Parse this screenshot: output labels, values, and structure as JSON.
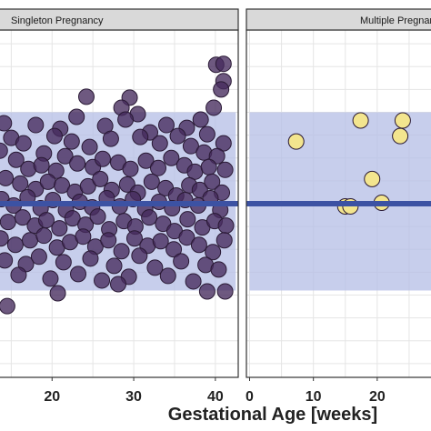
{
  "chart_data": {
    "type": "scatter",
    "xlabel": "Gestational Age [weeks]",
    "ylabel": "",
    "grid": true,
    "colors": {
      "singleton_point": "#452a5c",
      "multiple_point": "#f3e58e",
      "point_stroke": "#2a1a35",
      "reference_line": "#3c52a3",
      "reference_band": "#b4bde6",
      "strip_background": "#d9d9d9",
      "grid": "#e5e5e5"
    },
    "y_domain": [
      -1.9,
      1.9
    ],
    "reference": {
      "line": 0,
      "band": [
        -0.95,
        1.0
      ]
    },
    "panels": [
      {
        "title": "Singleton Pregnancy",
        "xlim": [
          13.4,
          42.8
        ],
        "xticks": [
          20,
          30,
          40
        ],
        "points": [
          [
            40.1,
            1.52
          ],
          [
            41.0,
            1.53
          ],
          [
            41.0,
            1.34
          ],
          [
            40.7,
            1.25
          ],
          [
            39.8,
            1.05
          ],
          [
            38.2,
            0.92
          ],
          [
            36.5,
            0.83
          ],
          [
            29.5,
            1.16
          ],
          [
            28.5,
            1.05
          ],
          [
            30.5,
            0.98
          ],
          [
            24.2,
            1.17
          ],
          [
            23.0,
            0.95
          ],
          [
            21.0,
            0.82
          ],
          [
            26.5,
            0.85
          ],
          [
            32.0,
            0.78
          ],
          [
            34.0,
            0.86
          ],
          [
            39.0,
            0.76
          ],
          [
            41.0,
            0.66
          ],
          [
            14.1,
            0.88
          ],
          [
            15.0,
            0.72
          ],
          [
            16.5,
            0.66
          ],
          [
            18.0,
            0.86
          ],
          [
            19.0,
            0.55
          ],
          [
            20.3,
            0.74
          ],
          [
            22.4,
            0.68
          ],
          [
            24.6,
            0.62
          ],
          [
            27.2,
            0.71
          ],
          [
            29.0,
            0.92
          ],
          [
            30.8,
            0.73
          ],
          [
            33.2,
            0.66
          ],
          [
            35.4,
            0.74
          ],
          [
            37.0,
            0.63
          ],
          [
            38.6,
            0.56
          ],
          [
            40.2,
            0.52
          ],
          [
            13.6,
            0.58
          ],
          [
            15.6,
            0.48
          ],
          [
            17.1,
            0.38
          ],
          [
            18.7,
            0.42
          ],
          [
            20.5,
            0.36
          ],
          [
            21.6,
            0.52
          ],
          [
            23.1,
            0.44
          ],
          [
            25.0,
            0.4
          ],
          [
            26.2,
            0.49
          ],
          [
            28.1,
            0.45
          ],
          [
            29.6,
            0.38
          ],
          [
            31.5,
            0.47
          ],
          [
            33.0,
            0.39
          ],
          [
            34.6,
            0.5
          ],
          [
            36.2,
            0.42
          ],
          [
            37.5,
            0.35
          ],
          [
            39.2,
            0.4
          ],
          [
            41.2,
            0.37
          ],
          [
            14.3,
            0.28
          ],
          [
            16.1,
            0.22
          ],
          [
            18.0,
            0.16
          ],
          [
            19.5,
            0.24
          ],
          [
            21.2,
            0.2
          ],
          [
            22.8,
            0.13
          ],
          [
            24.4,
            0.19
          ],
          [
            25.9,
            0.27
          ],
          [
            27.3,
            0.15
          ],
          [
            29.2,
            0.21
          ],
          [
            30.5,
            0.12
          ],
          [
            32.2,
            0.24
          ],
          [
            33.9,
            0.17
          ],
          [
            35.2,
            0.09
          ],
          [
            36.8,
            0.2
          ],
          [
            38.1,
            0.15
          ],
          [
            39.6,
            0.24
          ],
          [
            40.8,
            0.12
          ],
          [
            13.8,
            0.05
          ],
          [
            15.3,
            -0.02
          ],
          [
            17.0,
            0.07
          ],
          [
            18.6,
            -0.05
          ],
          [
            20.1,
            0.04
          ],
          [
            21.7,
            -0.07
          ],
          [
            23.4,
            0.02
          ],
          [
            24.9,
            -0.04
          ],
          [
            26.7,
            0.06
          ],
          [
            28.3,
            -0.03
          ],
          [
            29.9,
            0.05
          ],
          [
            31.4,
            -0.06
          ],
          [
            33.1,
            0.02
          ],
          [
            34.7,
            -0.05
          ],
          [
            36.3,
            0.04
          ],
          [
            37.9,
            -0.02
          ],
          [
            39.4,
            0.06
          ],
          [
            40.6,
            -0.07
          ],
          [
            14.6,
            -0.2
          ],
          [
            16.4,
            -0.15
          ],
          [
            17.9,
            -0.24
          ],
          [
            19.3,
            -0.18
          ],
          [
            20.9,
            -0.27
          ],
          [
            22.5,
            -0.16
          ],
          [
            24.1,
            -0.23
          ],
          [
            25.6,
            -0.14
          ],
          [
            27.0,
            -0.28
          ],
          [
            28.8,
            -0.19
          ],
          [
            30.2,
            -0.25
          ],
          [
            31.9,
            -0.15
          ],
          [
            33.6,
            -0.22
          ],
          [
            35.0,
            -0.3
          ],
          [
            36.6,
            -0.17
          ],
          [
            38.4,
            -0.26
          ],
          [
            39.9,
            -0.19
          ],
          [
            41.3,
            -0.24
          ],
          [
            13.7,
            -0.38
          ],
          [
            15.5,
            -0.45
          ],
          [
            17.3,
            -0.4
          ],
          [
            19.0,
            -0.35
          ],
          [
            20.6,
            -0.48
          ],
          [
            22.2,
            -0.42
          ],
          [
            23.8,
            -0.36
          ],
          [
            25.3,
            -0.47
          ],
          [
            26.9,
            -0.4
          ],
          [
            28.5,
            -0.52
          ],
          [
            30.1,
            -0.38
          ],
          [
            31.7,
            -0.46
          ],
          [
            33.3,
            -0.41
          ],
          [
            34.9,
            -0.5
          ],
          [
            36.5,
            -0.37
          ],
          [
            38.0,
            -0.45
          ],
          [
            39.7,
            -0.53
          ],
          [
            41.1,
            -0.4
          ],
          [
            14.2,
            -0.62
          ],
          [
            16.8,
            -0.66
          ],
          [
            18.4,
            -0.58
          ],
          [
            21.4,
            -0.64
          ],
          [
            24.7,
            -0.6
          ],
          [
            27.6,
            -0.68
          ],
          [
            30.7,
            -0.57
          ],
          [
            32.6,
            -0.7
          ],
          [
            35.8,
            -0.63
          ],
          [
            38.8,
            -0.67
          ],
          [
            40.4,
            -0.72
          ],
          [
            15.9,
            -0.78
          ],
          [
            19.8,
            -0.82
          ],
          [
            23.2,
            -0.77
          ],
          [
            26.1,
            -0.84
          ],
          [
            29.4,
            -0.8
          ],
          [
            34.2,
            -0.79
          ],
          [
            37.3,
            -0.85
          ],
          [
            39.0,
            -0.96
          ],
          [
            41.2,
            -0.96
          ],
          [
            20.7,
            -0.98
          ],
          [
            28.1,
            -0.88
          ],
          [
            14.5,
            -1.12
          ]
        ]
      },
      {
        "title": "Multiple Pregnancy",
        "xlim": [
          -0.5,
          29.0
        ],
        "xticks": [
          0,
          10,
          20
        ],
        "points": [
          [
            7.3,
            0.68
          ],
          [
            15.0,
            -0.03
          ],
          [
            15.8,
            -0.03
          ],
          [
            19.2,
            0.27
          ],
          [
            20.7,
            0.01
          ],
          [
            17.4,
            0.91
          ],
          [
            23.6,
            0.74
          ],
          [
            24.0,
            0.91
          ]
        ]
      }
    ]
  }
}
